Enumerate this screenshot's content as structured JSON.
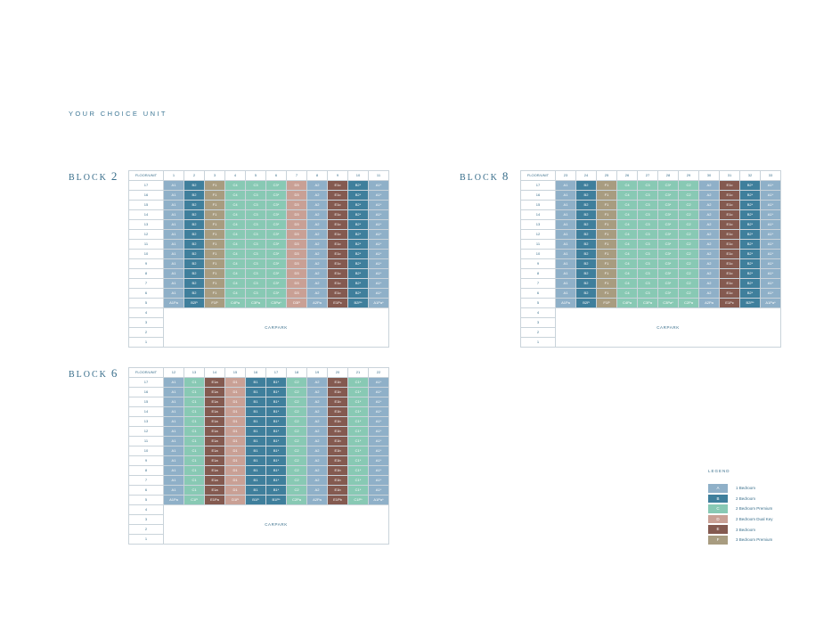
{
  "page_title": "YOUR CHOICE UNIT",
  "colors": {
    "A": "#8fb0c8",
    "B": "#3f7f9c",
    "C": "#88c9b4",
    "D": "#c9a095",
    "E": "#845a50",
    "F": "#a89c80"
  },
  "blocks": [
    {
      "label": "BLOCK",
      "number": "2",
      "header_label": "FLOOR/UNIT",
      "units": [
        "1",
        "2",
        "3",
        "4",
        "5",
        "6",
        "7",
        "8",
        "9",
        "10",
        "11"
      ],
      "floors": [
        "17",
        "16",
        "15",
        "14",
        "13",
        "12",
        "11",
        "10",
        "9",
        "8",
        "7",
        "6"
      ],
      "unit_types": [
        "A1",
        "B2",
        "F1",
        "C4",
        "C3",
        "C3*",
        "D3",
        "A2",
        "E1c",
        "B2*",
        "A1*"
      ],
      "level5_floor": "5",
      "level5_types": [
        "A1Pa",
        "B2P",
        "F1P",
        "C4Pa",
        "C3Pa",
        "C3Pa*",
        "D3P",
        "A2Pa",
        "E1Pc",
        "B2P*",
        "A1Pa*"
      ],
      "lower_floors": [
        "4",
        "3",
        "2",
        "1"
      ],
      "carpark_label": "CARPARK"
    },
    {
      "label": "BLOCK",
      "number": "8",
      "header_label": "FLOOR/UNIT",
      "units": [
        "23",
        "24",
        "25",
        "26",
        "27",
        "28",
        "29",
        "30",
        "31",
        "32",
        "33"
      ],
      "floors": [
        "17",
        "16",
        "15",
        "14",
        "13",
        "12",
        "11",
        "10",
        "9",
        "8",
        "7",
        "6"
      ],
      "unit_types": [
        "A1",
        "B2",
        "F1",
        "C4",
        "C3",
        "C3*",
        "C2",
        "A2",
        "E1c",
        "B2*",
        "A1*"
      ],
      "level5_floor": "5",
      "level5_types": [
        "A1Pa",
        "B2P",
        "F1P",
        "C4Pa",
        "C3Pa",
        "C3Pa*",
        "C2Pa",
        "A2Pa",
        "E1Pc",
        "B2P*",
        "A1Pa*"
      ],
      "lower_floors": [
        "4",
        "3",
        "2",
        "1"
      ],
      "carpark_label": "CARPARK"
    },
    {
      "label": "BLOCK",
      "number": "6",
      "header_label": "FLOOR/UNIT",
      "units": [
        "12",
        "13",
        "14",
        "15",
        "16",
        "17",
        "18",
        "19",
        "20",
        "21",
        "22"
      ],
      "floors": [
        "17",
        "16",
        "15",
        "14",
        "13",
        "12",
        "11",
        "10",
        "9",
        "8",
        "7",
        "6"
      ],
      "unit_types": [
        "A1",
        "C1",
        "E1a",
        "D1",
        "B1",
        "B1*",
        "C2",
        "A2",
        "E1b",
        "C1*",
        "A1*"
      ],
      "level5_floor": "5",
      "level5_types": [
        "A1Pa",
        "C1P",
        "E1Pa",
        "D1P",
        "B1P",
        "B1P*",
        "C2Pa",
        "A2Pa",
        "E1Pb",
        "C1P*",
        "A1Pa*"
      ],
      "lower_floors": [
        "4",
        "3",
        "2",
        "1"
      ],
      "carpark_label": "CARPARK"
    }
  ],
  "legend": {
    "title": "LEGEND",
    "items": [
      {
        "key": "A",
        "label": "1 Bedroom"
      },
      {
        "key": "B",
        "label": "2 Bedroom"
      },
      {
        "key": "C",
        "label": "2 Bedroom Premium"
      },
      {
        "key": "D",
        "label": "2 Bedroom Dual Key"
      },
      {
        "key": "E",
        "label": "3 Bedroom"
      },
      {
        "key": "F",
        "label": "3 Bedroom Premium"
      }
    ]
  }
}
